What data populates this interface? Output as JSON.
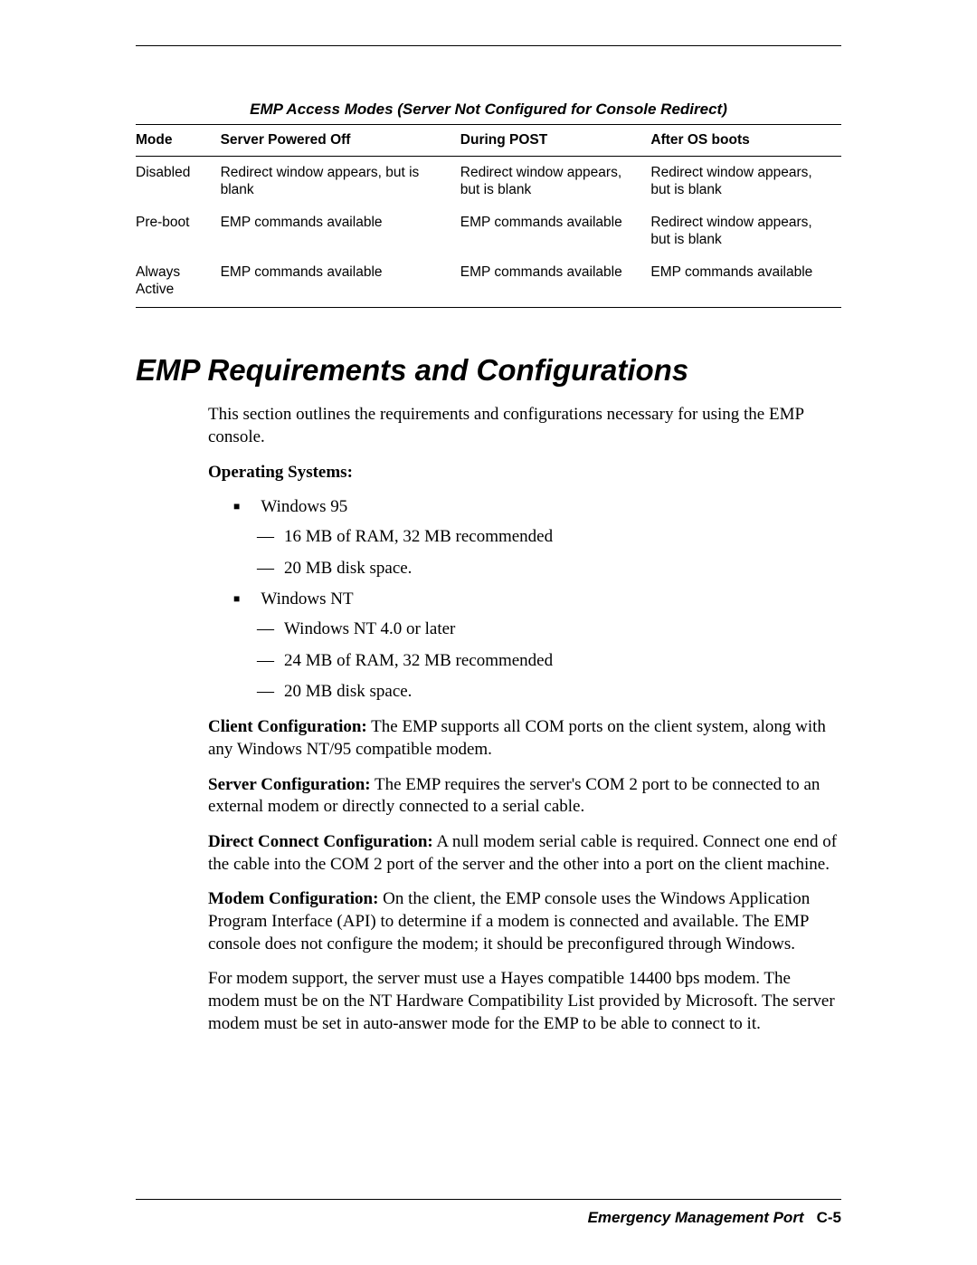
{
  "table": {
    "caption": "EMP Access Modes (Server Not Configured for Console Redirect)",
    "headers": [
      "Mode",
      "Server Powered Off",
      "During POST",
      "After OS boots"
    ],
    "rows": [
      [
        "Disabled",
        "Redirect window appears, but is blank",
        "Redirect window appears, but is blank",
        "Redirect window appears, but is blank"
      ],
      [
        "Pre-boot",
        "EMP commands available",
        "EMP commands available",
        "Redirect window appears, but is blank"
      ],
      [
        "Always Active",
        "EMP commands available",
        "EMP commands available",
        "EMP commands available"
      ]
    ]
  },
  "section": {
    "title": "EMP Requirements and Configurations",
    "intro": "This section outlines the requirements and configurations necessary for using the EMP console.",
    "os_heading": "Operating Systems:",
    "os_list": [
      {
        "name": "Windows 95",
        "subs": [
          "16 MB of RAM, 32 MB recommended",
          "20 MB disk space."
        ]
      },
      {
        "name": "Windows NT",
        "subs": [
          "Windows NT 4.0 or later",
          "24 MB of RAM, 32 MB recommended",
          "20 MB disk space."
        ]
      }
    ],
    "paras": [
      {
        "label": "Client Configuration:",
        "text": " The EMP supports all COM ports on the client system, along with any Windows NT/95 compatible modem."
      },
      {
        "label": "Server Configuration:",
        "text": " The EMP requires the server's COM 2 port to be connected to an external modem or directly connected to a serial cable."
      },
      {
        "label": "Direct Connect Configuration:",
        "text": " A null modem serial cable is required. Connect one end of the cable into the COM 2 port of the server and the other into a port on the client machine."
      },
      {
        "label": "Modem Configuration:",
        "text": " On the client, the EMP console uses the Windows Application Program Interface (API) to determine if a modem is connected and available. The EMP console does not configure the modem; it should be preconfigured through Windows."
      }
    ],
    "tail": "For modem support, the server must use a Hayes compatible 14400 bps modem. The modem must be on the NT Hardware Compatibility List provided by Microsoft. The server modem must be set in auto-answer mode for the EMP to be able to connect to it."
  },
  "footer": {
    "label": "Emergency Management Port",
    "page": "C-5"
  }
}
